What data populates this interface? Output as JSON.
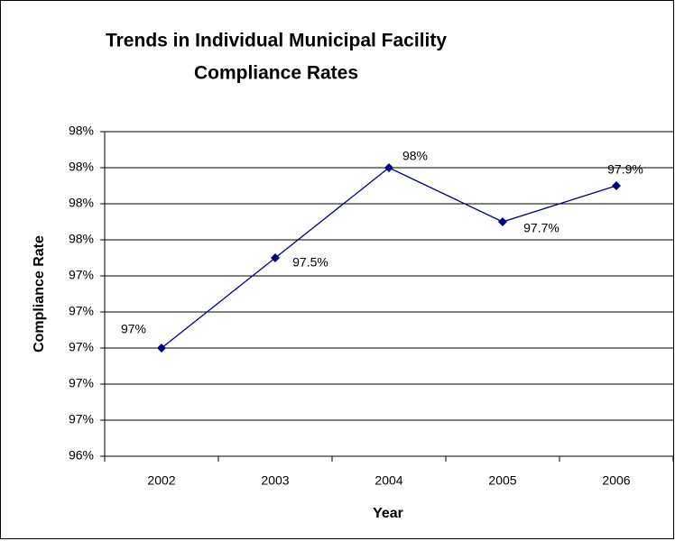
{
  "chart_data": {
    "type": "line",
    "title": [
      "Trends in Individual Municipal Facility",
      "Compliance Rates"
    ],
    "x_label": "Year",
    "y_label": "Compliance Rate",
    "categories": [
      "2002",
      "2003",
      "2004",
      "2005",
      "2006"
    ],
    "series": [
      {
        "name": "Compliance Rate",
        "color": "#000080",
        "values": [
          97.0,
          97.5,
          98.0,
          97.7,
          97.9
        ],
        "value_labels": [
          "97%",
          "97.5%",
          "98%",
          "97.7%",
          "97.9%"
        ]
      }
    ],
    "ylim": [
      96.4,
      98.2
    ],
    "yticks": [
      {
        "value": 96.4,
        "label": "96%"
      },
      {
        "value": 96.6,
        "label": "97%"
      },
      {
        "value": 96.8,
        "label": "97%"
      },
      {
        "value": 97.0,
        "label": "97%"
      },
      {
        "value": 97.2,
        "label": "97%"
      },
      {
        "value": 97.4,
        "label": "97%"
      },
      {
        "value": 97.6,
        "label": "98%"
      },
      {
        "value": 97.8,
        "label": "98%"
      },
      {
        "value": 98.0,
        "label": "98%"
      },
      {
        "value": 98.2,
        "label": "98%"
      }
    ],
    "grid": true
  }
}
